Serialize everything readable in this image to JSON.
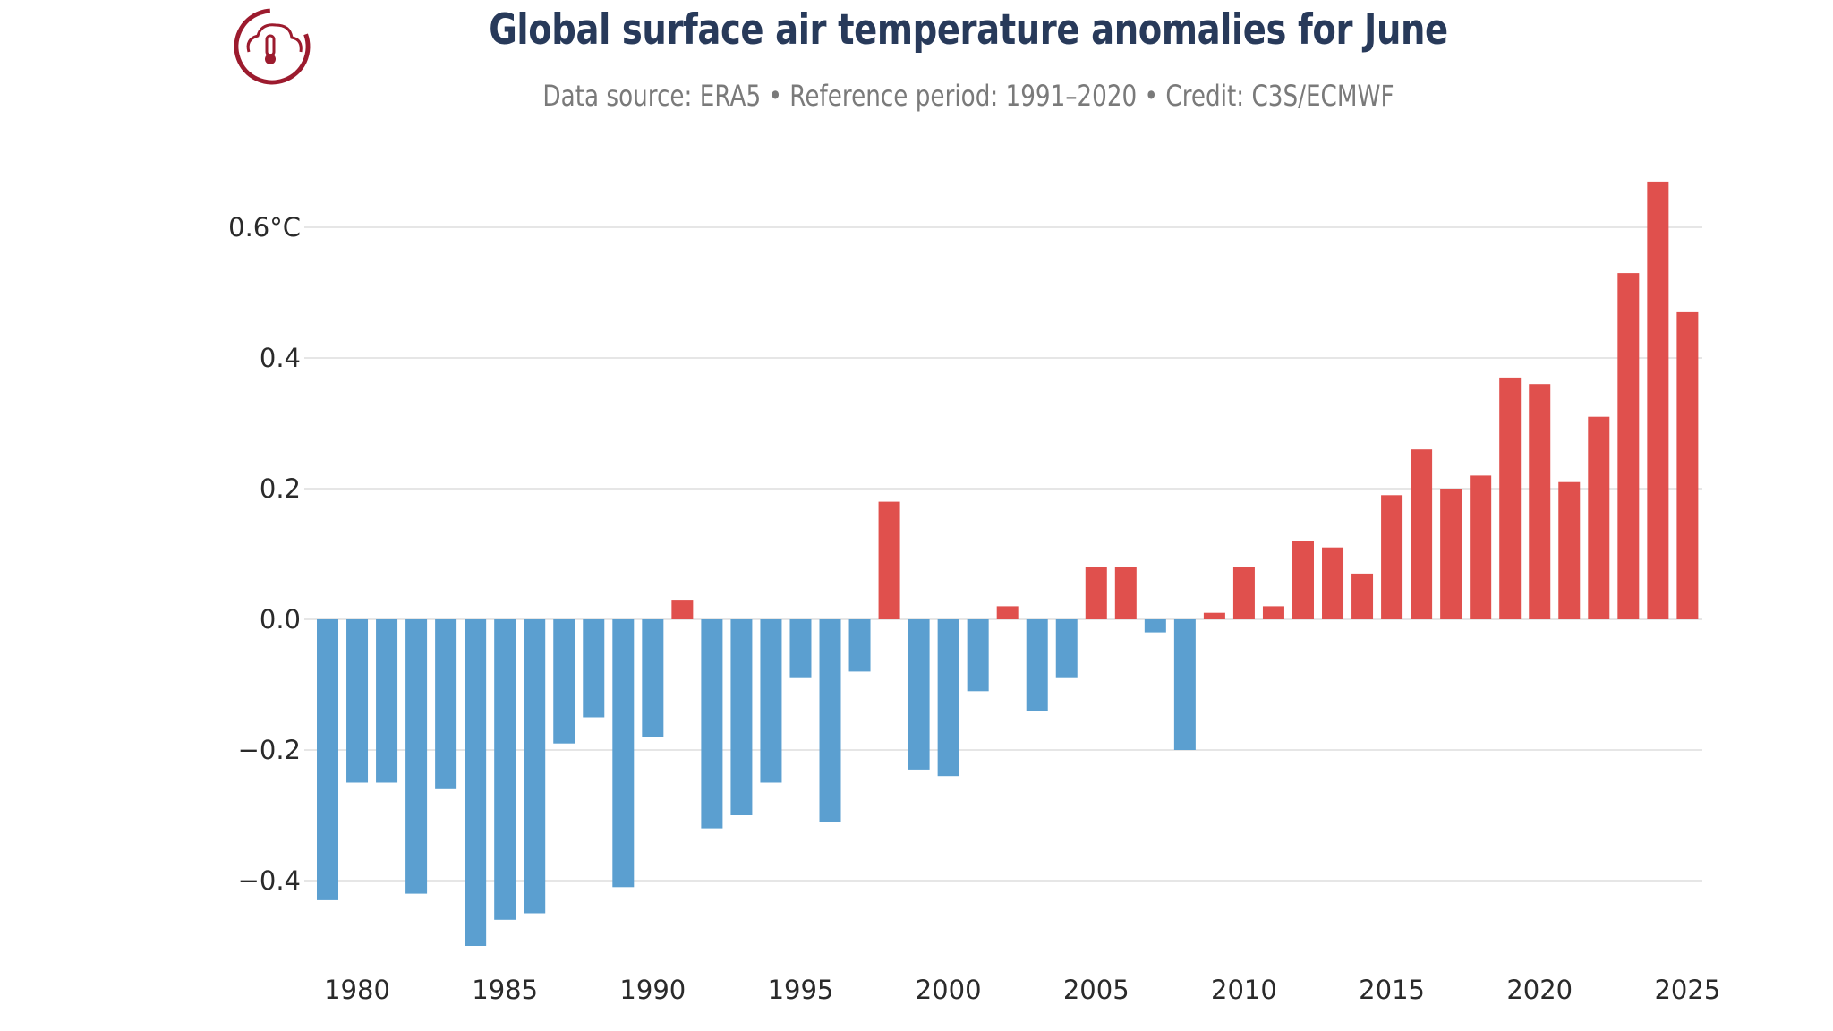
{
  "header": {
    "title": "Global surface air temperature anomalies for June",
    "subtitle": "Data source: ERA5 • Reference period: 1991–2020 • Credit: C3S/ECMWF",
    "logo_icon": "cloud-thermometer-icon"
  },
  "colors": {
    "positive": "#e0504d",
    "negative": "#5b9fd0",
    "title": "#283a5a",
    "logo": "#9c1b2e",
    "grid": "#e6e6e6"
  },
  "chart_data": {
    "type": "bar",
    "title": "Global surface air temperature anomalies for June",
    "xlabel": "",
    "ylabel": "",
    "ylim": [
      -0.5,
      0.68
    ],
    "grid": true,
    "legend": "none",
    "yticks": [
      {
        "value": 0.6,
        "label": "0.6°C"
      },
      {
        "value": 0.4,
        "label": "0.4"
      },
      {
        "value": 0.2,
        "label": "0.2"
      },
      {
        "value": 0.0,
        "label": "0.0"
      },
      {
        "value": -0.2,
        "label": "−0.2"
      },
      {
        "value": -0.4,
        "label": "−0.4"
      }
    ],
    "xticks": [
      "1980",
      "1985",
      "1990",
      "1995",
      "2000",
      "2005",
      "2010",
      "2015",
      "2020",
      "2025"
    ],
    "categories": [
      1979,
      1980,
      1981,
      1982,
      1983,
      1984,
      1985,
      1986,
      1987,
      1988,
      1989,
      1990,
      1991,
      1992,
      1993,
      1994,
      1995,
      1996,
      1997,
      1998,
      1999,
      2000,
      2001,
      2002,
      2003,
      2004,
      2005,
      2006,
      2007,
      2008,
      2009,
      2010,
      2011,
      2012,
      2013,
      2014,
      2015,
      2016,
      2017,
      2018,
      2019,
      2020,
      2021,
      2022,
      2023,
      2024,
      2025
    ],
    "values": [
      -0.43,
      -0.25,
      -0.25,
      -0.42,
      -0.26,
      -0.5,
      -0.46,
      -0.45,
      -0.19,
      -0.15,
      -0.41,
      -0.18,
      0.03,
      -0.32,
      -0.3,
      -0.25,
      -0.09,
      -0.31,
      -0.08,
      0.18,
      -0.23,
      -0.24,
      -0.11,
      0.02,
      -0.14,
      -0.09,
      0.08,
      0.08,
      -0.02,
      -0.2,
      0.01,
      0.08,
      0.02,
      0.12,
      0.11,
      0.07,
      0.19,
      0.26,
      0.2,
      0.22,
      0.37,
      0.36,
      0.21,
      0.31,
      0.53,
      0.67,
      0.47
    ]
  }
}
